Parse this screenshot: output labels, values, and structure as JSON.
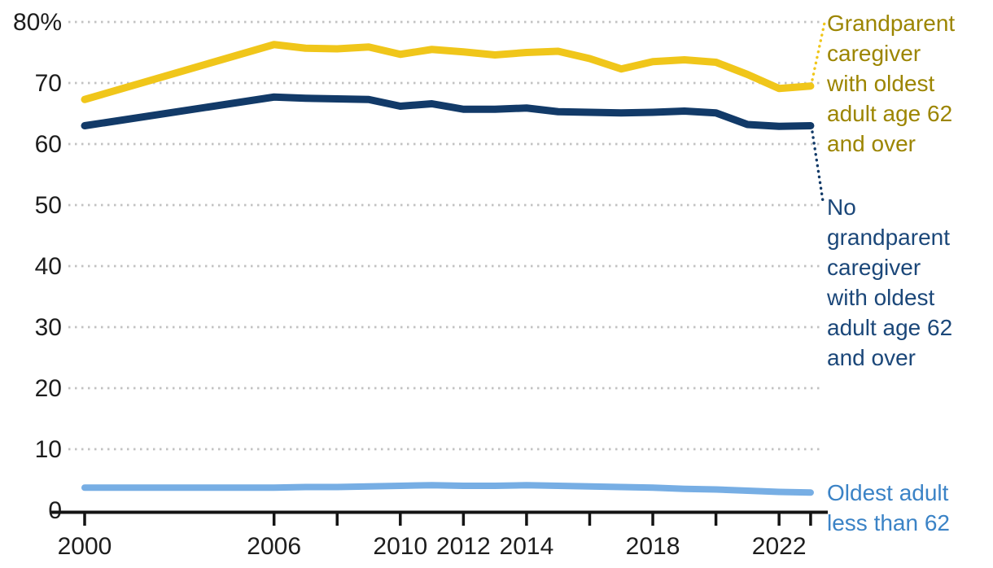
{
  "page": {
    "background": "#ffffff"
  },
  "chart_data": {
    "type": "line",
    "title": "",
    "xlabel": "",
    "ylabel": "",
    "y_unit": "%",
    "ylim": [
      0,
      80
    ],
    "xlim": [
      2000,
      2023
    ],
    "grid": "horizontal dotted gridlines at every 10%",
    "legend_position": "right-edge series annotations with dotted leader lines",
    "y_ticks": [
      0,
      10,
      20,
      30,
      40,
      50,
      60,
      70,
      80
    ],
    "y_tick_labels": [
      "0",
      "10",
      "20",
      "30",
      "40",
      "50",
      "60",
      "70",
      "80%"
    ],
    "x_ticks": [
      2000,
      2006,
      2008,
      2010,
      2012,
      2014,
      2016,
      2018,
      2020,
      2022,
      2023
    ],
    "x_tick_labels": [
      "2000",
      "2006",
      "",
      "2010",
      "2012",
      "2014",
      "",
      "2018",
      "",
      "2022",
      ""
    ],
    "x": [
      2000,
      2006,
      2007,
      2008,
      2009,
      2010,
      2011,
      2012,
      2013,
      2014,
      2015,
      2016,
      2017,
      2018,
      2019,
      2020,
      2021,
      2022,
      2023
    ],
    "series": [
      {
        "name": "Grandparent caregiver with oldest adult age 62 and over",
        "color": "#F0C61A",
        "label_color": "#9C8500",
        "values": [
          67.3,
          76.3,
          75.7,
          75.6,
          75.9,
          74.7,
          75.5,
          75.1,
          74.6,
          75.0,
          75.2,
          74.0,
          72.3,
          73.5,
          73.8,
          73.4,
          71.4,
          69.1,
          69.5
        ]
      },
      {
        "name": "No grandparent caregiver with oldest adult age 62 and over",
        "color": "#123A68",
        "label_color": "#1B4779",
        "values": [
          63.0,
          67.7,
          67.5,
          67.4,
          67.3,
          66.2,
          66.6,
          65.7,
          65.7,
          65.9,
          65.3,
          65.2,
          65.1,
          65.2,
          65.4,
          65.1,
          63.2,
          62.9,
          63.0
        ]
      },
      {
        "name": "Oldest adult less than 62",
        "color": "#77AEE4",
        "label_color": "#3B83C6",
        "values": [
          3.7,
          3.7,
          3.8,
          3.8,
          3.9,
          4.0,
          4.1,
          4.0,
          4.0,
          4.1,
          4.0,
          3.9,
          3.8,
          3.7,
          3.5,
          3.4,
          3.2,
          3.0,
          2.9
        ]
      }
    ]
  },
  "annotations": {
    "series_0": "Grandparent\ncaregiver\nwith oldest\nadult age 62\nand over",
    "series_1": "No\ngrandparent\ncaregiver\nwith oldest\nadult age 62\nand over",
    "series_2": "Oldest adult\nless than 62"
  },
  "colors": {
    "axis": "#141414",
    "tick_text": "#1d1d1d",
    "gridline": "#c2c2c2",
    "background": "#ffffff"
  }
}
